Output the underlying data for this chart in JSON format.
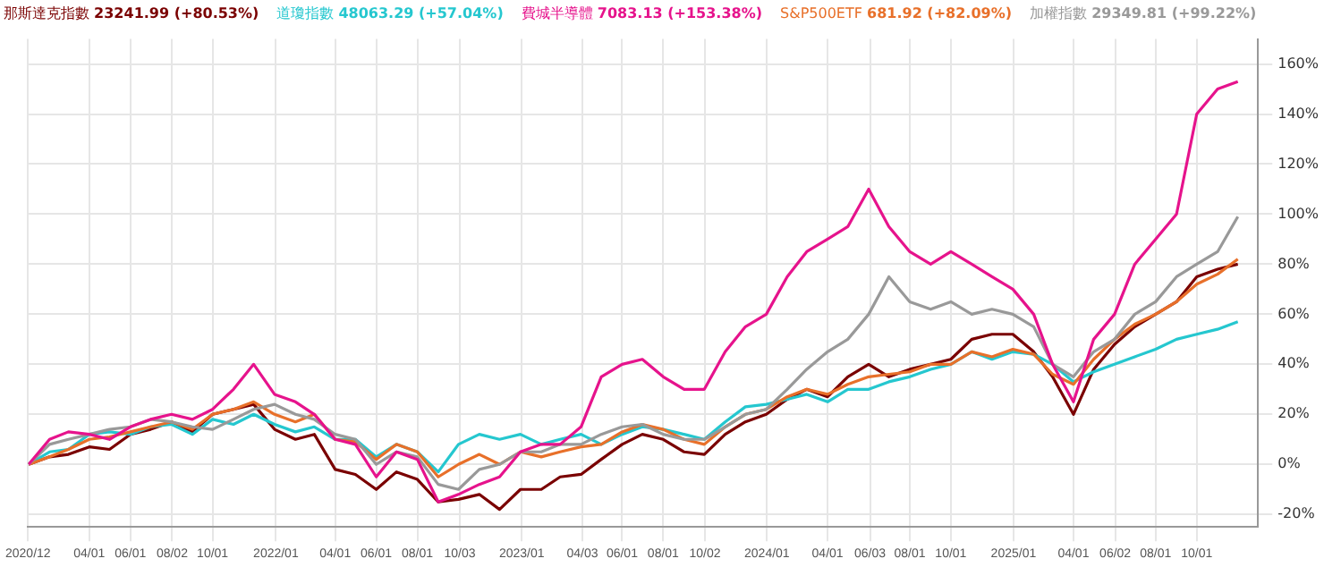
{
  "chart_data": {
    "type": "line",
    "legend": "top left",
    "grid": true,
    "marker": "none",
    "line_style": "solid",
    "x": [
      "2021-01",
      "2021-02",
      "2021-03",
      "2021-04",
      "2021-05",
      "2021-06",
      "2021-07",
      "2021-08",
      "2021-09",
      "2021-10",
      "2021-11",
      "2021-12",
      "2022-01",
      "2022-02",
      "2022-03",
      "2022-04",
      "2022-05",
      "2022-06",
      "2022-07",
      "2022-08",
      "2022-09",
      "2022-10",
      "2022-11",
      "2022-12",
      "2023-01",
      "2023-02",
      "2023-03",
      "2023-04",
      "2023-05",
      "2023-06",
      "2023-07",
      "2023-08",
      "2023-09",
      "2023-10",
      "2023-11",
      "2023-12",
      "2024-01",
      "2024-02",
      "2024-03",
      "2024-04",
      "2024-05",
      "2024-06",
      "2024-07",
      "2024-08",
      "2024-09",
      "2024-10",
      "2024-11",
      "2024-12",
      "2025-01",
      "2025-02",
      "2025-03",
      "2025-04",
      "2025-05",
      "2025-06",
      "2025-07",
      "2025-08",
      "2025-09",
      "2025-10",
      "2025-11",
      "2025-12"
    ],
    "series": [
      {
        "name": "那斯達克指數",
        "color": "#7a0000",
        "values": [
          0,
          3,
          4,
          7,
          6,
          12,
          14,
          17,
          13,
          20,
          22,
          24,
          14,
          10,
          12,
          -2,
          -4,
          -10,
          -3,
          -6,
          -15,
          -14,
          -12,
          -18,
          -10,
          -10,
          -5,
          -4,
          2,
          8,
          12,
          10,
          5,
          4,
          12,
          17,
          20,
          26,
          30,
          27,
          35,
          40,
          35,
          38,
          40,
          42,
          50,
          52,
          52,
          45,
          35,
          20,
          38,
          48,
          55,
          60,
          65,
          75,
          78,
          80
        ]
      },
      {
        "name": "道瓊指數",
        "color": "#25c7cf",
        "values": [
          0,
          5,
          6,
          12,
          13,
          12,
          15,
          16,
          12,
          18,
          16,
          20,
          16,
          13,
          15,
          10,
          10,
          3,
          8,
          5,
          -3,
          8,
          12,
          10,
          12,
          8,
          10,
          12,
          8,
          12,
          15,
          14,
          12,
          10,
          17,
          23,
          24,
          26,
          28,
          25,
          30,
          30,
          33,
          35,
          38,
          40,
          45,
          42,
          45,
          44,
          40,
          33,
          37,
          40,
          43,
          46,
          50,
          52,
          54,
          57
        ]
      },
      {
        "name": "費城半導體",
        "color": "#e6138c",
        "values": [
          0,
          10,
          13,
          12,
          10,
          15,
          18,
          20,
          18,
          22,
          30,
          40,
          28,
          25,
          20,
          10,
          8,
          -5,
          5,
          2,
          -15,
          -12,
          -8,
          -5,
          5,
          8,
          8,
          15,
          35,
          40,
          42,
          35,
          30,
          30,
          45,
          55,
          60,
          75,
          85,
          90,
          95,
          110,
          95,
          85,
          80,
          85,
          80,
          75,
          70,
          60,
          40,
          25,
          50,
          60,
          80,
          90,
          100,
          140,
          150,
          153
        ]
      },
      {
        "name": "S&P500ETF",
        "color": "#e8702a",
        "values": [
          0,
          3,
          6,
          10,
          11,
          13,
          15,
          17,
          14,
          20,
          22,
          25,
          20,
          17,
          20,
          10,
          9,
          2,
          8,
          5,
          -5,
          0,
          4,
          0,
          5,
          3,
          5,
          7,
          8,
          13,
          16,
          14,
          10,
          8,
          15,
          20,
          22,
          27,
          30,
          28,
          32,
          35,
          36,
          37,
          40,
          40,
          45,
          43,
          46,
          44,
          36,
          32,
          42,
          50,
          56,
          60,
          65,
          72,
          76,
          82
        ]
      },
      {
        "name": "加權指數",
        "color": "#999999",
        "values": [
          0,
          8,
          10,
          12,
          14,
          15,
          18,
          17,
          15,
          14,
          18,
          22,
          24,
          20,
          18,
          12,
          10,
          0,
          5,
          3,
          -8,
          -10,
          -2,
          0,
          5,
          5,
          8,
          8,
          12,
          15,
          16,
          12,
          10,
          10,
          15,
          20,
          22,
          30,
          38,
          45,
          50,
          60,
          75,
          65,
          62,
          65,
          60,
          62,
          60,
          55,
          40,
          35,
          45,
          50,
          60,
          65,
          75,
          80,
          85,
          99
        ]
      }
    ],
    "annotations": [
      "23241.99 (+80.53%)",
      "48063.29 (+57.04%)",
      "7083.13 (+153.38%)",
      "681.92 (+82.09%)",
      "29349.81 (+99.22%)"
    ],
    "xlim": [
      "2020-12-31",
      "2025-12-31"
    ],
    "xticks": [
      {
        "value": "2020-12-31",
        "label": "2020/12"
      },
      {
        "value": "2021-04-01",
        "label": "04/01"
      },
      {
        "value": "2021-06-01",
        "label": "06/01"
      },
      {
        "value": "2021-08-02",
        "label": "08/02"
      },
      {
        "value": "2021-10-01",
        "label": "10/01"
      },
      {
        "value": "2022-01-03",
        "label": "2022/01"
      },
      {
        "value": "2022-04-01",
        "label": "04/01"
      },
      {
        "value": "2022-06-01",
        "label": "06/01"
      },
      {
        "value": "2022-08-01",
        "label": "08/01"
      },
      {
        "value": "2022-10-03",
        "label": "10/03"
      },
      {
        "value": "2023-01-03",
        "label": "2023/01"
      },
      {
        "value": "2023-04-03",
        "label": "04/03"
      },
      {
        "value": "2023-06-01",
        "label": "06/01"
      },
      {
        "value": "2023-08-01",
        "label": "08/01"
      },
      {
        "value": "2023-10-02",
        "label": "10/02"
      },
      {
        "value": "2024-01-02",
        "label": "2024/01"
      },
      {
        "value": "2024-04-01",
        "label": "04/01"
      },
      {
        "value": "2024-06-03",
        "label": "06/03"
      },
      {
        "value": "2024-08-01",
        "label": "08/01"
      },
      {
        "value": "2024-10-01",
        "label": "10/01"
      },
      {
        "value": "2025-01-02",
        "label": "2025/01"
      },
      {
        "value": "2025-04-01",
        "label": "04/01"
      },
      {
        "value": "2025-06-02",
        "label": "06/02"
      },
      {
        "value": "2025-08-01",
        "label": "08/01"
      },
      {
        "value": "2025-10-01",
        "label": "10/01"
      }
    ],
    "ylim": [
      -25,
      170
    ],
    "yticks": [
      {
        "value": -20,
        "label": "-20%"
      },
      {
        "value": 0,
        "label": "0%"
      },
      {
        "value": 20,
        "label": "20%"
      },
      {
        "value": 40,
        "label": "40%"
      },
      {
        "value": 60,
        "label": "60%"
      },
      {
        "value": 80,
        "label": "80%"
      },
      {
        "value": 100,
        "label": "100%"
      },
      {
        "value": 120,
        "label": "120%"
      },
      {
        "value": 140,
        "label": "140%"
      },
      {
        "value": 160,
        "label": "160%"
      }
    ]
  }
}
